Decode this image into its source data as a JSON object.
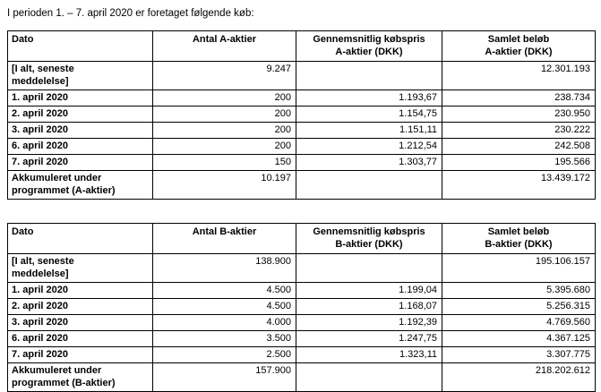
{
  "intro": "I perioden 1. – 7. april 2020 er foretaget følgende køb:",
  "tables": [
    {
      "name": "A-aktier",
      "headers": [
        "Dato",
        "Antal A-aktier",
        "Gennemsnitlig købspris\nA-aktier (DKK)",
        "Samlet beløb\nA-aktier (DKK)"
      ],
      "rows": [
        [
          "[I alt, seneste\nmeddelelse]",
          "9.247",
          "",
          "12.301.193"
        ],
        [
          "1. april 2020",
          "200",
          "1.193,67",
          "238.734"
        ],
        [
          "2. april 2020",
          "200",
          "1.154,75",
          "230.950"
        ],
        [
          "3. april 2020",
          "200",
          "1.151,11",
          "230.222"
        ],
        [
          "6. april 2020",
          "200",
          "1.212,54",
          "242.508"
        ],
        [
          "7. april 2020",
          "150",
          "1.303,77",
          "195.566"
        ],
        [
          "Akkumuleret under\nprogrammet (A-aktier)",
          "10.197",
          "",
          "13.439.172"
        ]
      ]
    },
    {
      "name": "B-aktier",
      "headers": [
        "Dato",
        "Antal B-aktier",
        "Gennemsnitlig købspris\nB-aktier (DKK)",
        "Samlet beløb\nB-aktier (DKK)"
      ],
      "rows": [
        [
          "[I alt, seneste\nmeddelelse]",
          "138.900",
          "",
          "195.106.157"
        ],
        [
          "1. april 2020",
          "4.500",
          "1.199,04",
          "5.395.680"
        ],
        [
          "2. april 2020",
          "4.500",
          "1.168,07",
          "5.256.315"
        ],
        [
          "3. april 2020",
          "4.000",
          "1.192,39",
          "4.769.560"
        ],
        [
          "6. april 2020",
          "3.500",
          "1.247,75",
          "4.367.125"
        ],
        [
          "7. april 2020",
          "2.500",
          "1.323,11",
          "3.307.775"
        ],
        [
          "Akkumuleret under\nprogrammet (B-aktier)",
          "157.900",
          "",
          "218.202.612"
        ]
      ]
    }
  ]
}
